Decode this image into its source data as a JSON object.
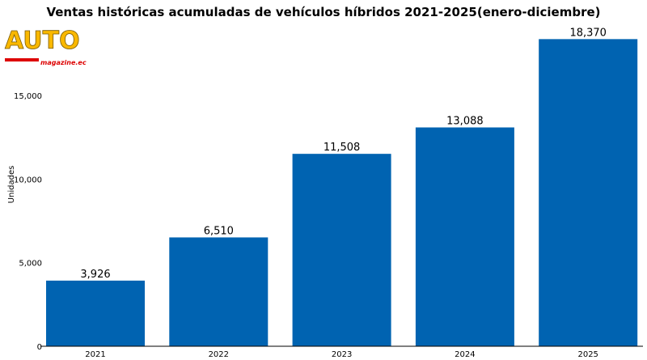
{
  "chart_data": {
    "type": "bar",
    "title": "Ventas históricas acumuladas de vehículos híbridos 2021-2025(enero-diciembre)",
    "xlabel": "",
    "ylabel": "Unidades",
    "categories": [
      "2021",
      "2022",
      "2023",
      "2024",
      "2025"
    ],
    "values": [
      3926,
      6510,
      11508,
      13088,
      18370
    ],
    "data_labels": [
      "3,926",
      "6,510",
      "11,508",
      "13,088",
      "18,370"
    ],
    "ylim": [
      0,
      18370
    ],
    "yticks": [
      0,
      5000,
      10000,
      15000
    ],
    "ytick_labels": [
      "0",
      "5,000",
      "10,000",
      "15,000"
    ],
    "grid": false,
    "bar_color": "#0063B1"
  },
  "logo": {
    "main": "AUTO",
    "sub": "magazine.ec"
  }
}
